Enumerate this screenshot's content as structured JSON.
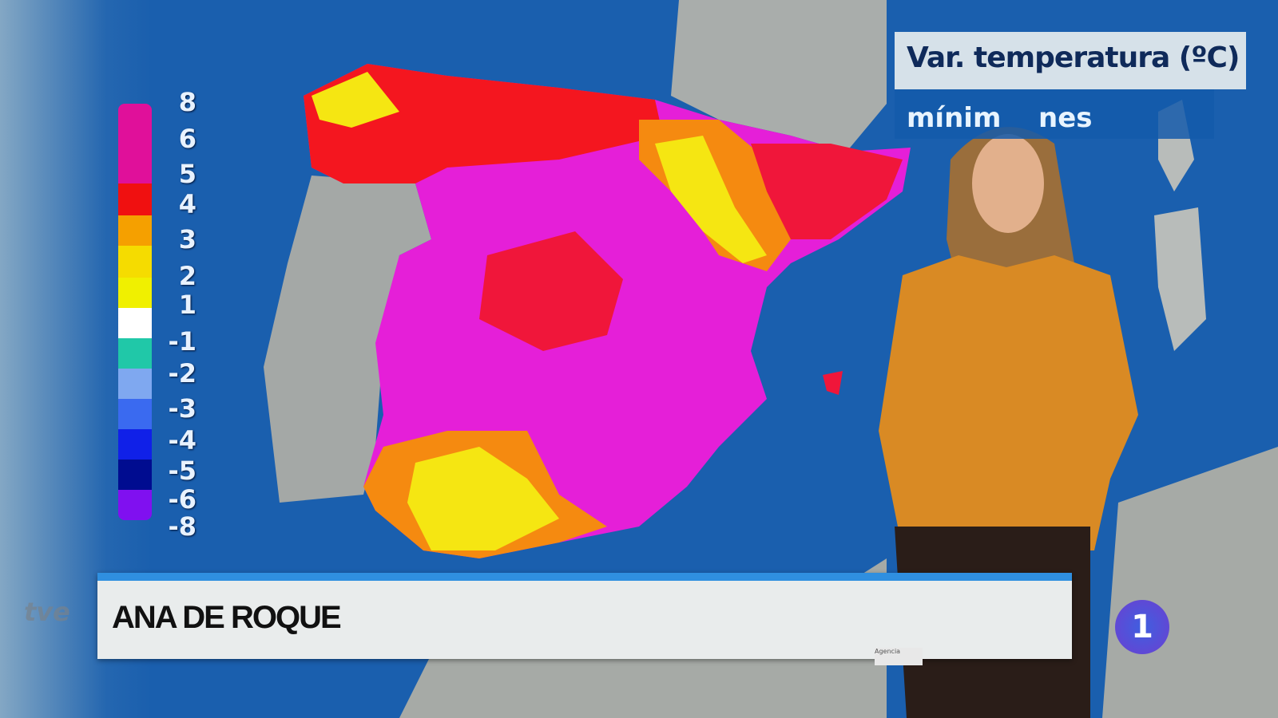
{
  "header": {
    "title": "Var. temperatura (ºC)",
    "subtitle_visible_start": "mínim",
    "subtitle_visible_end": "nes"
  },
  "legend": {
    "labels": [
      "8",
      "6",
      "5",
      "4",
      "3",
      "2",
      "1",
      "-1",
      "-2",
      "-3",
      "-4",
      "-5",
      "-6",
      "-8"
    ],
    "colors": [
      "#e0109a",
      "#e0109a",
      "#f01010",
      "#f5a000",
      "#f5dc00",
      "#f0f000",
      "#ffffff",
      "#20c8a8",
      "#7fa8f0",
      "#3a6af0",
      "#1020e8",
      "#000c90",
      "#8010f0"
    ]
  },
  "map_colors": {
    "sea": "#1a5fae",
    "land": "#a8aca8",
    "hot_pink": "#e81ee0",
    "red": "#f0163a",
    "orange": "#f58a10",
    "yellow": "#f5ea10"
  },
  "lower_third": {
    "name": "ANA DE ROQUE"
  },
  "logos": {
    "tve": "tve",
    "channel": "1"
  },
  "credit": "Agencia"
}
